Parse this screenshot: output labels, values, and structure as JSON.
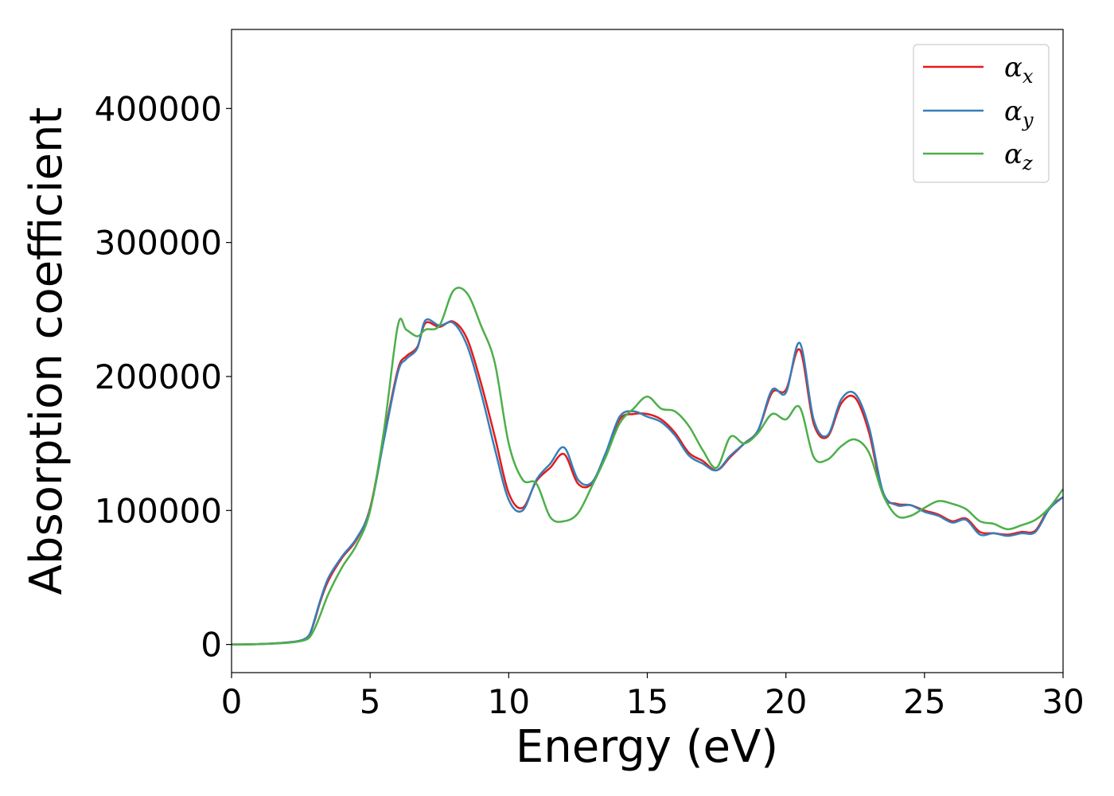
{
  "chart_data": {
    "type": "line",
    "xlabel": "Energy (eV)",
    "ylabel": "Absorption coefficient",
    "xlim": [
      0,
      30
    ],
    "ylim": [
      -21000,
      459000
    ],
    "xticks": [
      0,
      5,
      10,
      15,
      20,
      25,
      30
    ],
    "yticks": [
      0,
      100000,
      200000,
      300000,
      400000
    ],
    "grid": false,
    "legend_position": "top-right",
    "x": [
      0,
      1,
      2,
      2.5,
      2.8,
      3.0,
      3.2,
      3.5,
      4.0,
      4.5,
      5.0,
      5.5,
      6.0,
      6.3,
      6.7,
      7.0,
      7.5,
      8.0,
      8.5,
      9.0,
      9.5,
      10.0,
      10.5,
      11.0,
      11.5,
      12.0,
      12.5,
      13.0,
      13.5,
      14.0,
      14.5,
      15.0,
      15.5,
      16.0,
      16.5,
      17.0,
      17.5,
      18.0,
      18.5,
      19.0,
      19.5,
      20.0,
      20.5,
      21.0,
      21.5,
      22.0,
      22.5,
      23.0,
      23.5,
      24.0,
      24.5,
      25.0,
      25.5,
      26.0,
      26.5,
      27.0,
      27.5,
      28.0,
      28.5,
      29.0,
      29.5,
      30.0
    ],
    "series": [
      {
        "name": "α_x",
        "color": "#e41a1c",
        "values": [
          0,
          300,
          1500,
          3000,
          7000,
          18000,
          32000,
          48000,
          65000,
          78000,
          102000,
          155000,
          205000,
          215000,
          222000,
          240000,
          237000,
          241000,
          228000,
          195000,
          155000,
          113000,
          102000,
          122000,
          132000,
          142000,
          120000,
          120000,
          142000,
          168000,
          172000,
          172000,
          168000,
          158000,
          143000,
          137000,
          130000,
          140000,
          150000,
          160000,
          188000,
          190000,
          220000,
          165000,
          155000,
          180000,
          184000,
          158000,
          112000,
          105000,
          104000,
          100000,
          97000,
          92000,
          94000,
          84000,
          83000,
          82000,
          84000,
          85000,
          102000,
          110000
        ]
      },
      {
        "name": "α_y",
        "color": "#377eb8",
        "values": [
          0,
          300,
          1500,
          3000,
          7000,
          19000,
          33000,
          50000,
          66000,
          79000,
          101000,
          153000,
          203000,
          213000,
          221000,
          242000,
          238000,
          240000,
          223000,
          188000,
          146000,
          108000,
          100000,
          123000,
          135000,
          147000,
          123000,
          121000,
          143000,
          170000,
          174000,
          170000,
          166000,
          156000,
          141000,
          135000,
          130000,
          141000,
          150000,
          160000,
          190000,
          188000,
          225000,
          168000,
          156000,
          183000,
          187000,
          162000,
          114000,
          104000,
          104000,
          99000,
          96000,
          91000,
          93000,
          82000,
          83000,
          81000,
          83000,
          84000,
          101000,
          110000
        ]
      },
      {
        "name": "α_z",
        "color": "#4daf4a",
        "values": [
          0,
          300,
          1200,
          2500,
          5000,
          12000,
          22000,
          38000,
          58000,
          74000,
          100000,
          160000,
          238000,
          235000,
          230000,
          235000,
          238000,
          264000,
          262000,
          238000,
          210000,
          150000,
          123000,
          120000,
          95000,
          92000,
          98000,
          118000,
          140000,
          165000,
          176000,
          185000,
          176000,
          174000,
          163000,
          145000,
          132000,
          155000,
          150000,
          158000,
          172000,
          168000,
          177000,
          140000,
          138000,
          148000,
          153000,
          143000,
          112000,
          96000,
          96000,
          102000,
          107000,
          105000,
          101000,
          92000,
          90000,
          86000,
          89000,
          93000,
          102000,
          116000
        ]
      }
    ]
  },
  "legend": {
    "items": [
      {
        "symbol": "α",
        "sub": "x"
      },
      {
        "symbol": "α",
        "sub": "y"
      },
      {
        "symbol": "α",
        "sub": "z"
      }
    ]
  }
}
